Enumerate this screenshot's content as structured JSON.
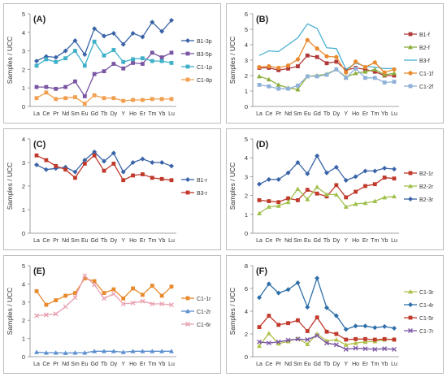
{
  "figure": {
    "title": ""
  },
  "chart_data": [
    {
      "type": "line",
      "panel_label": "(A)",
      "title": "",
      "xlabel": "",
      "ylabel": "Samples / UCC",
      "x": [
        "La",
        "Ce",
        "Pr",
        "Nd",
        "Sm",
        "Eu",
        "Gd",
        "Tb",
        "Dy",
        "Y",
        "Ho",
        "Er",
        "Tm",
        "Yb",
        "Lu"
      ],
      "ylim": [
        0,
        5
      ],
      "yticks": [
        "0",
        "1",
        "2",
        "3",
        "4",
        "5"
      ],
      "grid": false,
      "legend_position": "right",
      "series": [
        {
          "name": "B1-3p",
          "color": "#3a64a8",
          "marker": "diamond",
          "values": [
            2.45,
            2.7,
            2.65,
            3.0,
            3.55,
            2.8,
            4.2,
            3.8,
            3.95,
            3.35,
            3.95,
            3.75,
            4.55,
            4.05,
            4.65
          ]
        },
        {
          "name": "B3-5p",
          "color": "#7a55a3",
          "marker": "square",
          "values": [
            1.05,
            1.05,
            0.95,
            1.05,
            1.35,
            0.55,
            1.75,
            1.9,
            2.3,
            2.05,
            2.35,
            2.3,
            2.9,
            2.65,
            2.9
          ]
        },
        {
          "name": "C1-1p",
          "color": "#3fb0c8",
          "marker": "square",
          "values": [
            2.2,
            2.55,
            2.4,
            2.6,
            3.0,
            2.2,
            3.5,
            2.75,
            3.05,
            2.4,
            2.55,
            2.6,
            2.45,
            2.45,
            2.35
          ]
        },
        {
          "name": "C1-8p",
          "color": "#f0a050",
          "marker": "square",
          "values": [
            0.45,
            0.75,
            0.4,
            0.45,
            0.5,
            0.15,
            0.6,
            0.45,
            0.45,
            0.3,
            0.35,
            0.35,
            0.4,
            0.4,
            0.4
          ]
        }
      ]
    },
    {
      "type": "line",
      "panel_label": "(B)",
      "title": "",
      "xlabel": "",
      "ylabel": "Samples / UCC",
      "x": [
        "La",
        "Ce",
        "Pr",
        "Nd",
        "Sm",
        "Eu",
        "Gd",
        "Tb",
        "Dy",
        "Y",
        "Ho",
        "Er",
        "Tm",
        "Yb",
        "Lu"
      ],
      "ylim": [
        0,
        6
      ],
      "yticks": [
        "0",
        "1",
        "2",
        "3",
        "4",
        "5",
        "6"
      ],
      "grid": false,
      "legend_position": "right",
      "series": [
        {
          "name": "B1-f",
          "color": "#b03a3a",
          "marker": "square",
          "values": [
            2.5,
            2.5,
            2.35,
            2.45,
            2.6,
            3.3,
            3.2,
            2.8,
            2.9,
            2.35,
            2.5,
            2.4,
            2.25,
            2.0,
            2.0
          ]
        },
        {
          "name": "B2-f",
          "color": "#8aae3c",
          "marker": "triangle",
          "values": [
            1.95,
            1.75,
            1.4,
            1.2,
            1.1,
            1.95,
            2.0,
            2.1,
            2.4,
            1.9,
            2.15,
            2.25,
            2.4,
            2.05,
            2.15
          ]
        },
        {
          "name": "B3-f",
          "color": "#4ab0d0",
          "marker": "none",
          "values": [
            3.3,
            3.6,
            3.55,
            4.0,
            4.45,
            5.35,
            5.05,
            3.8,
            3.75,
            2.4,
            2.8,
            2.6,
            2.55,
            2.45,
            2.45
          ]
        },
        {
          "name": "C1-1f",
          "color": "#e88a2e",
          "marker": "circle",
          "values": [
            2.55,
            2.6,
            2.5,
            2.65,
            3.05,
            4.3,
            3.75,
            3.25,
            3.2,
            2.2,
            2.9,
            2.55,
            2.85,
            2.2,
            2.4
          ]
        },
        {
          "name": "C1-2f",
          "color": "#8fb0d8",
          "marker": "square",
          "values": [
            1.4,
            1.3,
            1.15,
            1.15,
            1.35,
            1.95,
            1.95,
            2.05,
            2.4,
            1.85,
            2.45,
            1.85,
            1.85,
            1.55,
            1.6
          ]
        }
      ]
    },
    {
      "type": "line",
      "panel_label": "(C)",
      "title": "",
      "xlabel": "",
      "ylabel": "Samples / UCC",
      "x": [
        "La",
        "Ce",
        "Pr",
        "Nd",
        "Sm",
        "Eu",
        "Gd",
        "Tb",
        "Dy",
        "Y",
        "Ho",
        "Er",
        "Tm",
        "Yb",
        "Lu"
      ],
      "ylim": [
        0,
        4
      ],
      "yticks": [
        "0",
        "1",
        "2",
        "3",
        "4"
      ],
      "grid": false,
      "legend_position": "right",
      "series": [
        {
          "name": "B1-r",
          "color": "#3a64a8",
          "marker": "diamond",
          "values": [
            2.9,
            2.7,
            2.75,
            2.8,
            2.6,
            3.1,
            3.45,
            3.05,
            3.4,
            2.6,
            3.0,
            3.15,
            3.0,
            3.0,
            2.85
          ]
        },
        {
          "name": "B3-r",
          "color": "#c0392b",
          "marker": "square",
          "values": [
            3.3,
            3.1,
            2.85,
            2.7,
            2.35,
            2.95,
            3.3,
            2.65,
            2.95,
            2.25,
            2.45,
            2.5,
            2.35,
            2.3,
            2.25
          ]
        }
      ]
    },
    {
      "type": "line",
      "panel_label": "(D)",
      "title": "",
      "xlabel": "",
      "ylabel": "Samples / UCC",
      "x": [
        "La",
        "Ce",
        "Pr",
        "Nd",
        "Sm",
        "Eu",
        "Gd",
        "Tb",
        "Dy",
        "Y",
        "Ho",
        "Er",
        "Tm",
        "Yb",
        "Lu"
      ],
      "ylim": [
        0,
        5
      ],
      "yticks": [
        "0",
        "1",
        "2",
        "3",
        "4",
        "5"
      ],
      "grid": false,
      "legend_position": "right",
      "series": [
        {
          "name": "B2-1r",
          "color": "#c0392b",
          "marker": "square",
          "values": [
            1.75,
            1.7,
            1.65,
            1.85,
            1.75,
            2.3,
            2.1,
            1.95,
            2.55,
            1.9,
            2.2,
            2.5,
            2.6,
            2.95,
            2.9
          ]
        },
        {
          "name": "B2-2r",
          "color": "#9fc04a",
          "marker": "triangle",
          "values": [
            1.05,
            1.4,
            1.45,
            1.65,
            2.35,
            1.8,
            2.45,
            2.05,
            2.05,
            1.4,
            1.55,
            1.6,
            1.7,
            1.9,
            1.95
          ]
        },
        {
          "name": "B2-3r",
          "color": "#3a64a8",
          "marker": "diamond",
          "values": [
            2.6,
            2.85,
            2.85,
            3.2,
            3.75,
            3.15,
            4.1,
            3.2,
            3.5,
            2.8,
            3.0,
            3.3,
            3.3,
            3.45,
            3.4
          ]
        }
      ]
    },
    {
      "type": "line",
      "panel_label": "(E)",
      "title": "",
      "xlabel": "",
      "ylabel": "Samples / UCC",
      "x": [
        "La",
        "Ce",
        "Pr",
        "Nd",
        "Sm",
        "Eu",
        "Gd",
        "Tb",
        "Dy",
        "Y",
        "Ho",
        "Er",
        "Tm",
        "Yb",
        "Lu"
      ],
      "ylim": [
        0,
        5
      ],
      "yticks": [
        "0",
        "1",
        "2",
        "3",
        "4",
        "5"
      ],
      "grid": false,
      "legend_position": "right",
      "series": [
        {
          "name": "C1-1r",
          "color": "#e88a2e",
          "marker": "square",
          "values": [
            3.6,
            2.85,
            3.1,
            3.35,
            3.5,
            4.3,
            4.15,
            3.5,
            3.7,
            3.2,
            3.75,
            3.4,
            3.9,
            3.35,
            3.85
          ]
        },
        {
          "name": "C1-2r",
          "color": "#5b8fd0",
          "marker": "triangle",
          "values": [
            0.25,
            0.22,
            0.22,
            0.2,
            0.22,
            0.22,
            0.3,
            0.3,
            0.3,
            0.25,
            0.3,
            0.3,
            0.3,
            0.3,
            0.3
          ]
        },
        {
          "name": "C1-6r",
          "color": "#e8a0b0",
          "marker": "x",
          "values": [
            2.25,
            2.3,
            2.35,
            2.75,
            3.25,
            4.45,
            3.95,
            3.2,
            3.45,
            2.9,
            2.95,
            3.05,
            2.9,
            2.9,
            2.85
          ]
        }
      ]
    },
    {
      "type": "line",
      "panel_label": "(F)",
      "title": "",
      "xlabel": "",
      "ylabel": "Samples / UCC",
      "x": [
        "La",
        "Ce",
        "Pr",
        "Nd",
        "Sm",
        "Eu",
        "Gd",
        "Tb",
        "Dy",
        "Y",
        "Ho",
        "Er",
        "Tm",
        "Yb",
        "Lu"
      ],
      "ylim": [
        0,
        8
      ],
      "yticks": [
        "0",
        "2",
        "4",
        "6",
        "8"
      ],
      "grid": false,
      "legend_position": "right",
      "series": [
        {
          "name": "C1-3r",
          "color": "#b0c04a",
          "marker": "triangle",
          "values": [
            0.95,
            2.05,
            1.15,
            1.35,
            1.6,
            1.1,
            2.0,
            1.4,
            1.5,
            1.05,
            1.2,
            1.3,
            1.35,
            1.5,
            1.55
          ]
        },
        {
          "name": "C1-4r",
          "color": "#2f6fa8",
          "marker": "diamond",
          "values": [
            5.2,
            6.4,
            5.6,
            5.9,
            6.5,
            4.35,
            6.9,
            4.3,
            3.6,
            2.4,
            2.7,
            2.7,
            2.55,
            2.65,
            2.5
          ]
        },
        {
          "name": "C1-5r",
          "color": "#c0392b",
          "marker": "square",
          "values": [
            2.6,
            3.6,
            2.8,
            2.95,
            3.2,
            2.25,
            3.45,
            2.2,
            2.0,
            1.5,
            1.55,
            1.55,
            1.5,
            1.55,
            1.5
          ]
        },
        {
          "name": "C1-7r",
          "color": "#7a55a3",
          "marker": "x",
          "values": [
            1.3,
            1.2,
            1.3,
            1.45,
            1.55,
            1.5,
            1.85,
            1.2,
            1.05,
            0.65,
            0.75,
            0.7,
            0.65,
            0.7,
            0.65
          ]
        }
      ]
    }
  ]
}
